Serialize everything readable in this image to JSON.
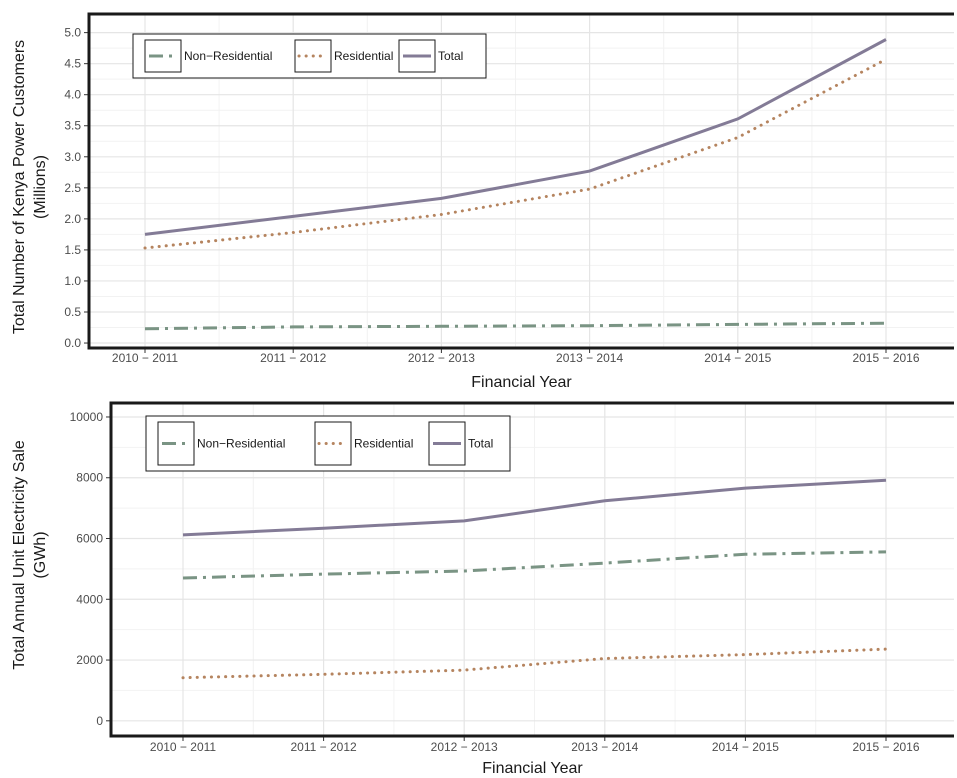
{
  "colors": {
    "non_residential": "#7a9484",
    "residential": "#b5845f",
    "total": "#837b96",
    "grid_major": "#e5e5e5",
    "grid_minor": "#f2f2f2",
    "frame": "#1a1a1a"
  },
  "chart_data": [
    {
      "type": "line",
      "categories": [
        "2010 − 2011",
        "2011 − 2012",
        "2012 − 2013",
        "2013 − 2014",
        "2014 − 2015",
        "2015 − 2016"
      ],
      "series": [
        {
          "key": "non_residential",
          "name": "Non−Residential",
          "style": "dashdot",
          "values": [
            0.23,
            0.26,
            0.27,
            0.28,
            0.3,
            0.32
          ]
        },
        {
          "key": "residential",
          "name": "Residential",
          "style": "dotted",
          "values": [
            1.53,
            1.78,
            2.07,
            2.48,
            3.31,
            4.57
          ]
        },
        {
          "key": "total",
          "name": "Total",
          "style": "solid",
          "values": [
            1.75,
            2.04,
            2.33,
            2.77,
            3.61,
            4.89
          ]
        }
      ],
      "xlabel": "Financial Year",
      "ylabel_lines": [
        "Total Number of Kenya Power Customers",
        "(Millions)"
      ],
      "yticks": [
        "0.0",
        "0.5",
        "1.0",
        "1.5",
        "2.0",
        "2.5",
        "3.0",
        "3.5",
        "4.0",
        "4.5",
        "5.0"
      ],
      "ylim": [
        -0.08,
        5.3
      ],
      "grid": true,
      "legend_position": "top-left"
    },
    {
      "type": "line",
      "categories": [
        "2010 − 2011",
        "2011 − 2012",
        "2012 − 2013",
        "2013 − 2014",
        "2014 − 2015",
        "2015 − 2016"
      ],
      "series": [
        {
          "key": "non_residential",
          "name": "Non−Residential",
          "style": "dashdot",
          "values": [
            4700,
            4830,
            4930,
            5190,
            5480,
            5560
          ]
        },
        {
          "key": "residential",
          "name": "Residential",
          "style": "dotted",
          "values": [
            1420,
            1530,
            1670,
            2050,
            2180,
            2360
          ]
        },
        {
          "key": "total",
          "name": "Total",
          "style": "solid",
          "values": [
            6120,
            6340,
            6580,
            7240,
            7660,
            7920
          ]
        }
      ],
      "xlabel": "Financial Year",
      "ylabel_lines": [
        "Total Annual Unit Electricity Sale",
        "(GWh)"
      ],
      "yticks": [
        "0",
        "2000",
        "4000",
        "6000",
        "8000",
        "10000"
      ],
      "ytick_values": [
        0,
        2000,
        4000,
        6000,
        8000,
        10000
      ],
      "ylim": [
        -500,
        10460
      ],
      "grid": true,
      "legend_position": "top-left"
    }
  ]
}
